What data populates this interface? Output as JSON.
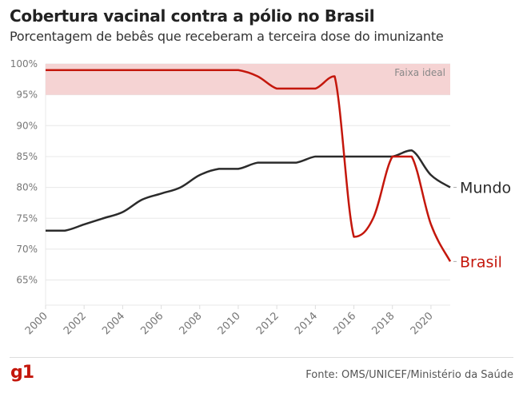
{
  "header": {
    "title": "Cobertura vacinal contra a pólio no Brasil",
    "subtitle": "Porcentagem de bebês que receberam a terceira dose do imunizante"
  },
  "footer": {
    "logo": "g1",
    "source": "Fonte: OMS/UNICEF/Ministério da Saúde"
  },
  "colors": {
    "brasil": "#c4170c",
    "mundo": "#2b2b2b",
    "band": "#f5d3d3",
    "grid": "#e8e8e8",
    "tick_text": "#777777"
  },
  "chart_data": {
    "type": "line",
    "title": "Cobertura vacinal contra a pólio no Brasil",
    "xlabel": "",
    "ylabel": "",
    "x": [
      2000,
      2001,
      2002,
      2003,
      2004,
      2005,
      2006,
      2007,
      2008,
      2009,
      2010,
      2011,
      2012,
      2013,
      2014,
      2015,
      2016,
      2017,
      2018,
      2019,
      2020,
      2021
    ],
    "xlim": [
      2000,
      2021
    ],
    "ylim": [
      61,
      100
    ],
    "x_ticks": [
      "2000",
      "2002",
      "2004",
      "2006",
      "2008",
      "2010",
      "2012",
      "2014",
      "2016",
      "2018",
      "2020"
    ],
    "y_ticks": [
      "65%",
      "70%",
      "75%",
      "80%",
      "85%",
      "90%",
      "95%",
      "100%"
    ],
    "grid": true,
    "band": {
      "label": "Faixa ideal",
      "from": 95,
      "to": 100
    },
    "series": [
      {
        "name": "Mundo",
        "values": [
          73,
          73,
          74,
          75,
          76,
          78,
          79,
          80,
          82,
          83,
          83,
          84,
          84,
          84,
          85,
          85,
          85,
          85,
          85,
          86,
          82,
          80
        ]
      },
      {
        "name": "Brasil",
        "values": [
          99,
          99,
          99,
          99,
          99,
          99,
          99,
          99,
          99,
          99,
          99,
          98,
          96,
          96,
          96,
          98,
          72,
          75,
          85,
          85,
          74,
          68
        ]
      }
    ],
    "legend": "end-of-line labels (right)"
  }
}
